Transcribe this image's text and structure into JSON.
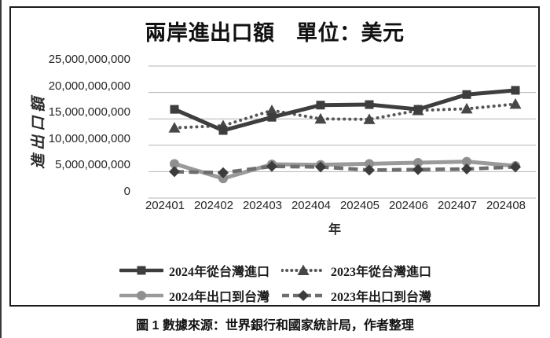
{
  "title": "兩岸進出口額　單位：美元",
  "caption": "圖 1 數據來源：世界銀行和國家統計局，作者整理",
  "y_axis_title": "進出口額",
  "x_axis_title": "年",
  "y_tick_labels": [
    "25,000,000,000",
    "20,000,000,000",
    "15,000,000,000",
    "10,000,000,000",
    "5,000,000,000",
    "0"
  ],
  "colors": {
    "import_2024": "#3e3e3e",
    "import_2023": "#575757",
    "export_2024": "#9a9a9a",
    "export_2023": "#6e6e6e",
    "marker_dark": "#3c3c3c",
    "gridline": "#b3b3b3",
    "frame_border": "#1c1c1c"
  },
  "chart_data": {
    "type": "line",
    "title": "兩岸進出口額　單位：美元",
    "xlabel": "年",
    "ylabel": "進出口額",
    "categories": [
      "202401",
      "202402",
      "202403",
      "202404",
      "202405",
      "202406",
      "202407",
      "202408"
    ],
    "series": [
      {
        "name": "2024年從台灣進口",
        "marker": "square",
        "line": "solid",
        "color": "#3e3e3e",
        "marker_color": "#3e3e3e",
        "values": [
          16800000000,
          12800000000,
          15300000000,
          17600000000,
          17700000000,
          16800000000,
          19600000000,
          20400000000
        ]
      },
      {
        "name": "2023年從台灣進口",
        "marker": "triangle",
        "line": "dotted",
        "color": "#575757",
        "marker_color": "#474747",
        "values": [
          13300000000,
          13700000000,
          16600000000,
          15000000000,
          14900000000,
          16600000000,
          16900000000,
          17800000000
        ]
      },
      {
        "name": "2024年出口到台灣",
        "marker": "circle",
        "line": "solid",
        "color": "#9a9a9a",
        "marker_color": "#8f8f8f",
        "values": [
          6500000000,
          3700000000,
          6400000000,
          6300000000,
          6500000000,
          6700000000,
          6900000000,
          6100000000
        ]
      },
      {
        "name": "2023年出口到台灣",
        "marker": "diamond",
        "line": "dashed",
        "color": "#6e6e6e",
        "marker_color": "#3c3c3c",
        "values": [
          5000000000,
          4800000000,
          6000000000,
          5900000000,
          5300000000,
          5400000000,
          5500000000,
          5900000000
        ]
      }
    ],
    "ylim": [
      0,
      25000000000
    ],
    "y_tick_step": 5000000000,
    "grid": "horizontal",
    "legend_position": "bottom"
  }
}
